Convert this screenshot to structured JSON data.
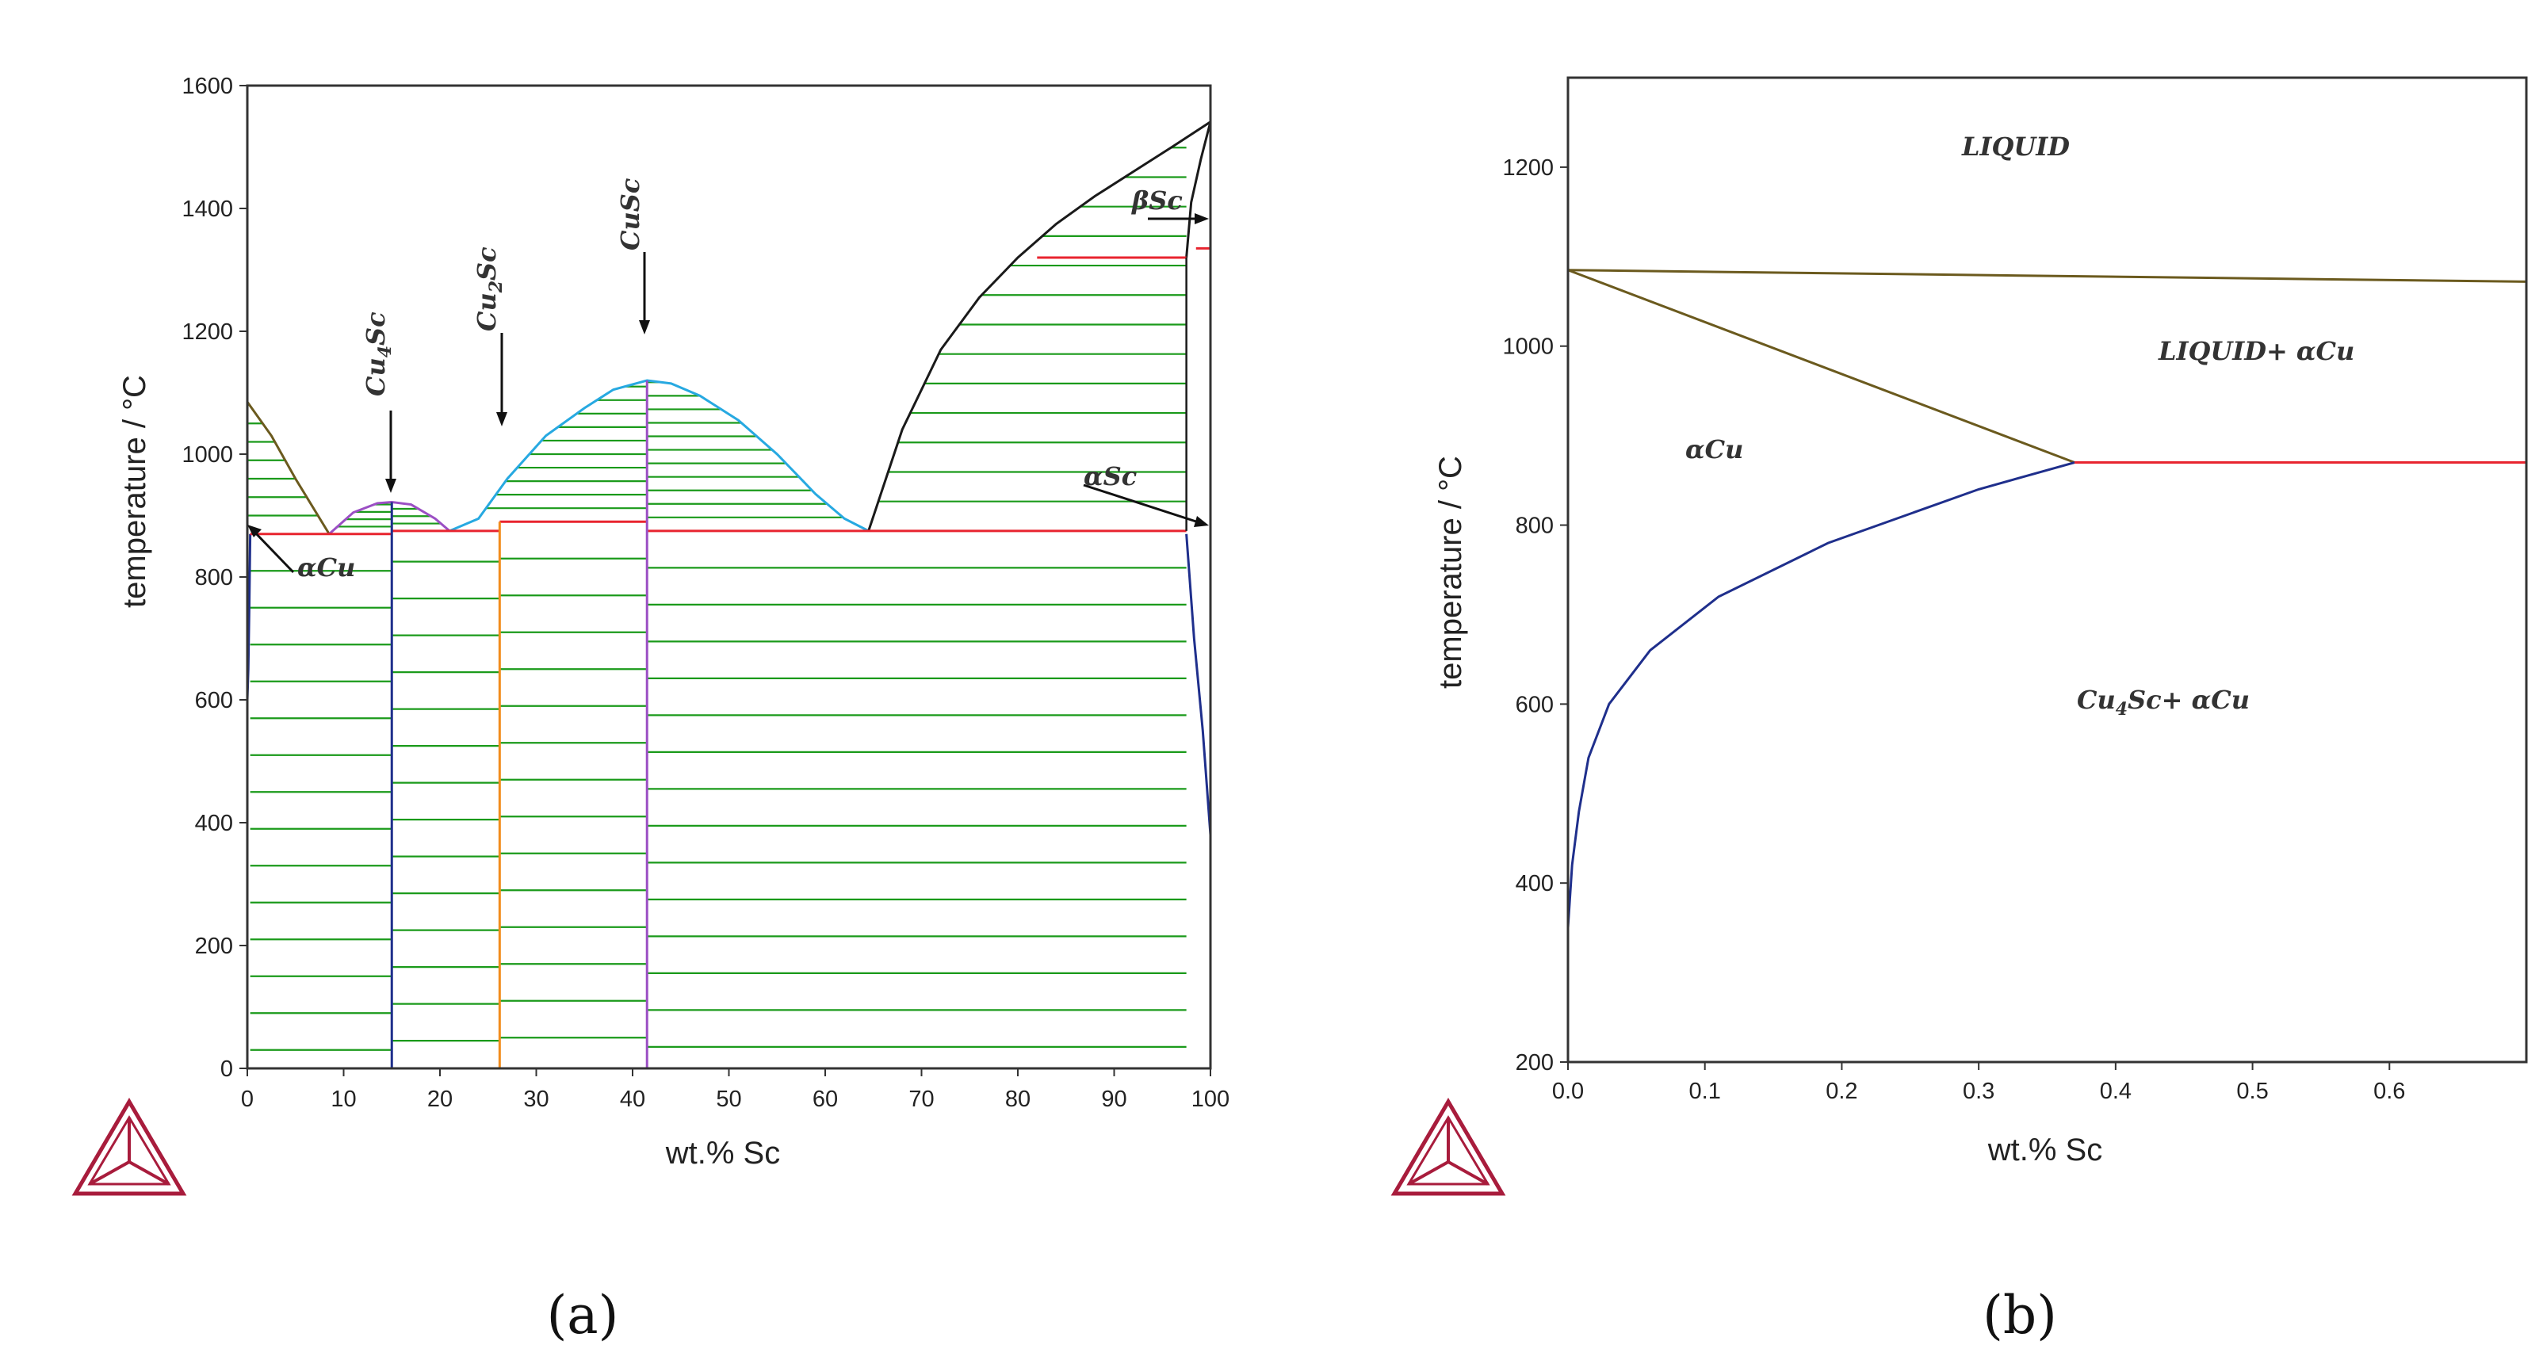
{
  "colors": {
    "tie_line": "#1a9a1a",
    "liquidus": "#1a1a1a",
    "dome": "#27a9e1",
    "cu4sc_dome": "#9b4fc4",
    "cu_liquidus": "#6b5a1e",
    "invariant": "#e8242f",
    "phase_boundary": "#1f2f8c",
    "cu2sc_line": "#f28c1c",
    "logo": "#a81c3c"
  },
  "panels": {
    "a_label": "(a)",
    "b_label": "(b)"
  },
  "chart_data": [
    {
      "type": "line",
      "panel": "a",
      "xlabel": "wt.% Sc",
      "ylabel": "temperature / °C",
      "xlim": [
        0,
        100
      ],
      "ylim": [
        0,
        1600
      ],
      "xticks": [
        0,
        10,
        20,
        30,
        40,
        50,
        60,
        70,
        80,
        90,
        100
      ],
      "yticks": [
        0,
        200,
        400,
        600,
        800,
        1000,
        1200,
        1400,
        1600
      ],
      "labels": {
        "alphaCu": "αCu",
        "Cu4Sc_main": "Cu",
        "Cu4Sc_sub": "4",
        "Cu4Sc_end": "Sc",
        "Cu2Sc_main": "Cu",
        "Cu2Sc_sub": "2",
        "Cu2Sc_end": "Sc",
        "CuSc": "CuSc",
        "betaSc": "βSc",
        "alphaSc": "αSc"
      },
      "series": [
        {
          "role": "cu-liquidus",
          "x": [
            0,
            2.5,
            5,
            8.5
          ],
          "y": [
            1085,
            1030,
            960,
            870
          ]
        },
        {
          "role": "cu4sc-dome",
          "x": [
            8.5,
            11,
            13.5,
            15,
            17,
            19.5,
            21
          ],
          "y": [
            870,
            905,
            920,
            922,
            918,
            895,
            875
          ]
        },
        {
          "role": "cusc-dome",
          "x": [
            21,
            24,
            27,
            31,
            35,
            38,
            41.5,
            44,
            47,
            51,
            55,
            59,
            62,
            64.5
          ],
          "y": [
            875,
            895,
            960,
            1030,
            1075,
            1105,
            1120,
            1115,
            1095,
            1055,
            1000,
            935,
            895,
            875
          ]
        },
        {
          "role": "sc-liquidus",
          "x": [
            64.5,
            68,
            72,
            76,
            80,
            84,
            88,
            92,
            96,
            100
          ],
          "y": [
            875,
            1040,
            1170,
            1255,
            1320,
            1375,
            1420,
            1460,
            1500,
            1541
          ]
        },
        {
          "role": "alphaSc-solvus",
          "x": [
            97.5,
            98.3,
            99.2,
            100
          ],
          "y": [
            870,
            700,
            550,
            380
          ]
        },
        {
          "role": "betaSc-solvus",
          "x": [
            97.5,
            98,
            99,
            100
          ],
          "y": [
            1320,
            1410,
            1480,
            1541
          ]
        },
        {
          "role": "alphaCu-solvus",
          "x": [
            0.3,
            0.2,
            0.1,
            0
          ],
          "y": [
            870,
            750,
            650,
            600
          ]
        }
      ],
      "invariants": [
        {
          "temperature": 870,
          "x_from": 0.3,
          "x_to": 15
        },
        {
          "temperature": 875,
          "x_from": 15,
          "x_to": 26.2
        },
        {
          "temperature": 890,
          "x_from": 26.2,
          "x_to": 41.5
        },
        {
          "temperature": 875,
          "x_from": 41.5,
          "x_to": 97.5
        },
        {
          "temperature": 1320,
          "x_from": 82,
          "x_to": 97.5
        },
        {
          "temperature": 1335,
          "x_from": 98.5,
          "x_to": 100
        }
      ],
      "compounds": [
        {
          "name": "Cu4Sc",
          "x": 15
        },
        {
          "name": "Cu2Sc",
          "x": 26.2
        },
        {
          "name": "CuSc",
          "x": 41.5
        }
      ]
    },
    {
      "type": "line",
      "panel": "b",
      "xlabel": "wt.% Sc",
      "ylabel": "temperature / °C",
      "xlim": [
        0,
        0.7
      ],
      "ylim": [
        200,
        1300
      ],
      "xticks": [
        0.0,
        0.1,
        0.2,
        0.3,
        0.4,
        0.5,
        0.6
      ],
      "xtick_labels": [
        "0.0",
        "0.1",
        "0.2",
        "0.3",
        "0.4",
        "0.5",
        "0.6"
      ],
      "yticks": [
        200,
        400,
        600,
        800,
        1000,
        1200
      ],
      "labels": {
        "liquid": "LIQUID",
        "liquid_alphaCu": "LIQUID+ αCu",
        "alphaCu": "αCu",
        "cu4sc_alphaCu_main": "Cu",
        "cu4sc_alphaCu_sub": "4",
        "cu4sc_alphaCu_end": "Sc+ αCu"
      },
      "series": [
        {
          "role": "liquidus",
          "x": [
            0,
            0.7
          ],
          "y": [
            1085,
            1072
          ]
        },
        {
          "role": "solidus",
          "x": [
            0,
            0.37
          ],
          "y": [
            1085,
            870
          ]
        },
        {
          "role": "solvus",
          "x": [
            0,
            0.003,
            0.008,
            0.015,
            0.03,
            0.06,
            0.11,
            0.19,
            0.3,
            0.37
          ],
          "y": [
            350,
            420,
            480,
            540,
            600,
            660,
            720,
            780,
            840,
            870
          ]
        },
        {
          "role": "eutectic",
          "x": [
            0.37,
            0.7
          ],
          "y": [
            870,
            870
          ]
        }
      ]
    }
  ]
}
